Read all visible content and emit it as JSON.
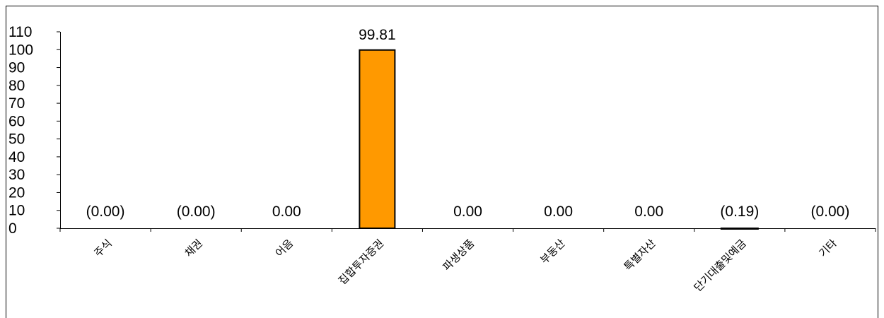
{
  "chart_data": {
    "type": "bar",
    "categories": [
      "주식",
      "채권",
      "어음",
      "집합투자증권",
      "파생상품",
      "부동산",
      "특별자산",
      "단기대출및예금",
      "기타"
    ],
    "values": [
      0.0,
      0.0,
      0.0,
      99.81,
      0.0,
      0.0,
      0.0,
      -0.19,
      0.0
    ],
    "data_labels": [
      "(0.00)",
      "(0.00)",
      "0.00",
      "99.81",
      "0.00",
      "0.00",
      "0.00",
      "(0.19)",
      "(0.00)"
    ],
    "y_ticks": [
      "0",
      "10",
      "20",
      "30",
      "40",
      "50",
      "60",
      "70",
      "80",
      "90",
      "100",
      "110"
    ],
    "ylim": [
      0,
      110
    ],
    "title": "",
    "xlabel": "",
    "ylabel": "",
    "grid": false,
    "bar_color": "#FF9900",
    "bar_outline": "#000000"
  }
}
